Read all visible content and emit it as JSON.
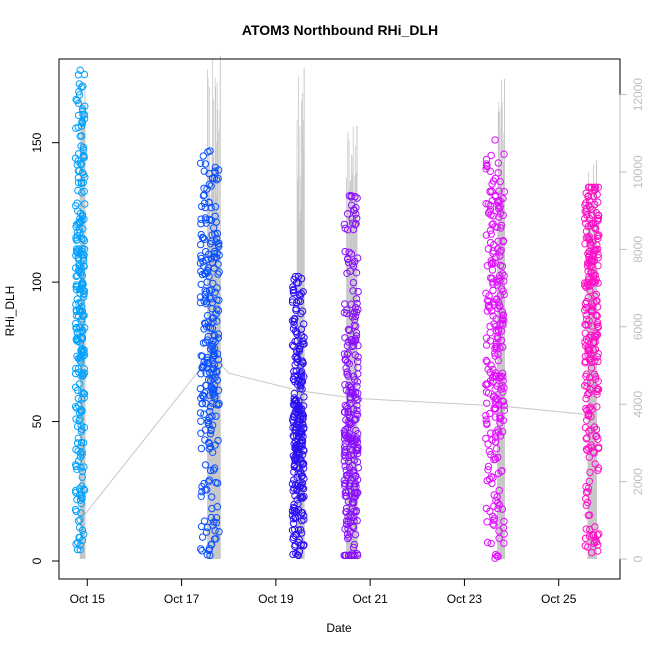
{
  "chart_data": {
    "type": "scatter",
    "title": "ATOM3 Northbound RHi_DLH",
    "xlabel": "Date",
    "ylabel": "RHi_DLH",
    "x_ticks": [
      "Oct 15",
      "Oct 17",
      "Oct 19",
      "Oct 21",
      "Oct 23",
      "Oct 25"
    ],
    "x_tick_days": [
      15,
      17,
      19,
      21,
      23,
      25
    ],
    "xlim_days": [
      14.4,
      26.3
    ],
    "y_ticks": [
      0,
      50,
      100,
      150
    ],
    "ylim": [
      0,
      180
    ],
    "y2_ticks": [
      "0",
      "2000",
      "4000",
      "6000",
      "8000",
      "10000",
      "12000"
    ],
    "y2_values": [
      0,
      2000,
      4000,
      6000,
      8000,
      10000,
      12000
    ],
    "y2lim": [
      0,
      12920
    ],
    "grid": false,
    "series": [
      {
        "flight": 1,
        "day_start": 14.75,
        "day_end": 14.95,
        "y_min": 4,
        "y_max": 176,
        "y_center": 92,
        "color": "#00a2ff"
      },
      {
        "flight": 2,
        "day_start": 17.4,
        "day_end": 17.8,
        "y_min": 2,
        "y_max": 147,
        "y_center": 80,
        "color": "#0a50ff"
      },
      {
        "flight": 3,
        "day_start": 19.35,
        "day_end": 19.6,
        "y_min": 2,
        "y_max": 102,
        "y_center": 40,
        "color": "#2b10f5"
      },
      {
        "flight": 4,
        "day_start": 20.45,
        "day_end": 20.75,
        "y_min": 2,
        "y_max": 131,
        "y_center": 42,
        "color": "#8a10ff"
      },
      {
        "flight": 5,
        "day_start": 23.45,
        "day_end": 23.85,
        "y_min": 1,
        "y_max": 151,
        "y_center": 85,
        "color": "#e010ff"
      },
      {
        "flight": 6,
        "day_start": 25.55,
        "day_end": 25.85,
        "y_min": 3,
        "y_max": 134,
        "y_center": 95,
        "color": "#ff10c8"
      }
    ],
    "altitude_series": {
      "color": "#c8c8c8",
      "line": [
        [
          14.85,
          1000
        ],
        [
          17.65,
          5300
        ],
        [
          18.0,
          4800
        ],
        [
          19.5,
          4350
        ],
        [
          20.7,
          4150
        ],
        [
          23.8,
          3950
        ],
        [
          25.7,
          3720
        ]
      ],
      "spikes": [
        {
          "day_start": 14.85,
          "day_end": 14.95,
          "top": 12300
        },
        {
          "day_start": 17.55,
          "day_end": 17.82,
          "top": 13000
        },
        {
          "day_start": 19.45,
          "day_end": 19.6,
          "top": 12700
        },
        {
          "day_start": 20.5,
          "day_end": 20.72,
          "top": 11200
        },
        {
          "day_start": 23.7,
          "day_end": 23.85,
          "top": 12400
        },
        {
          "day_start": 25.62,
          "day_end": 25.8,
          "top": 10300
        }
      ]
    }
  }
}
